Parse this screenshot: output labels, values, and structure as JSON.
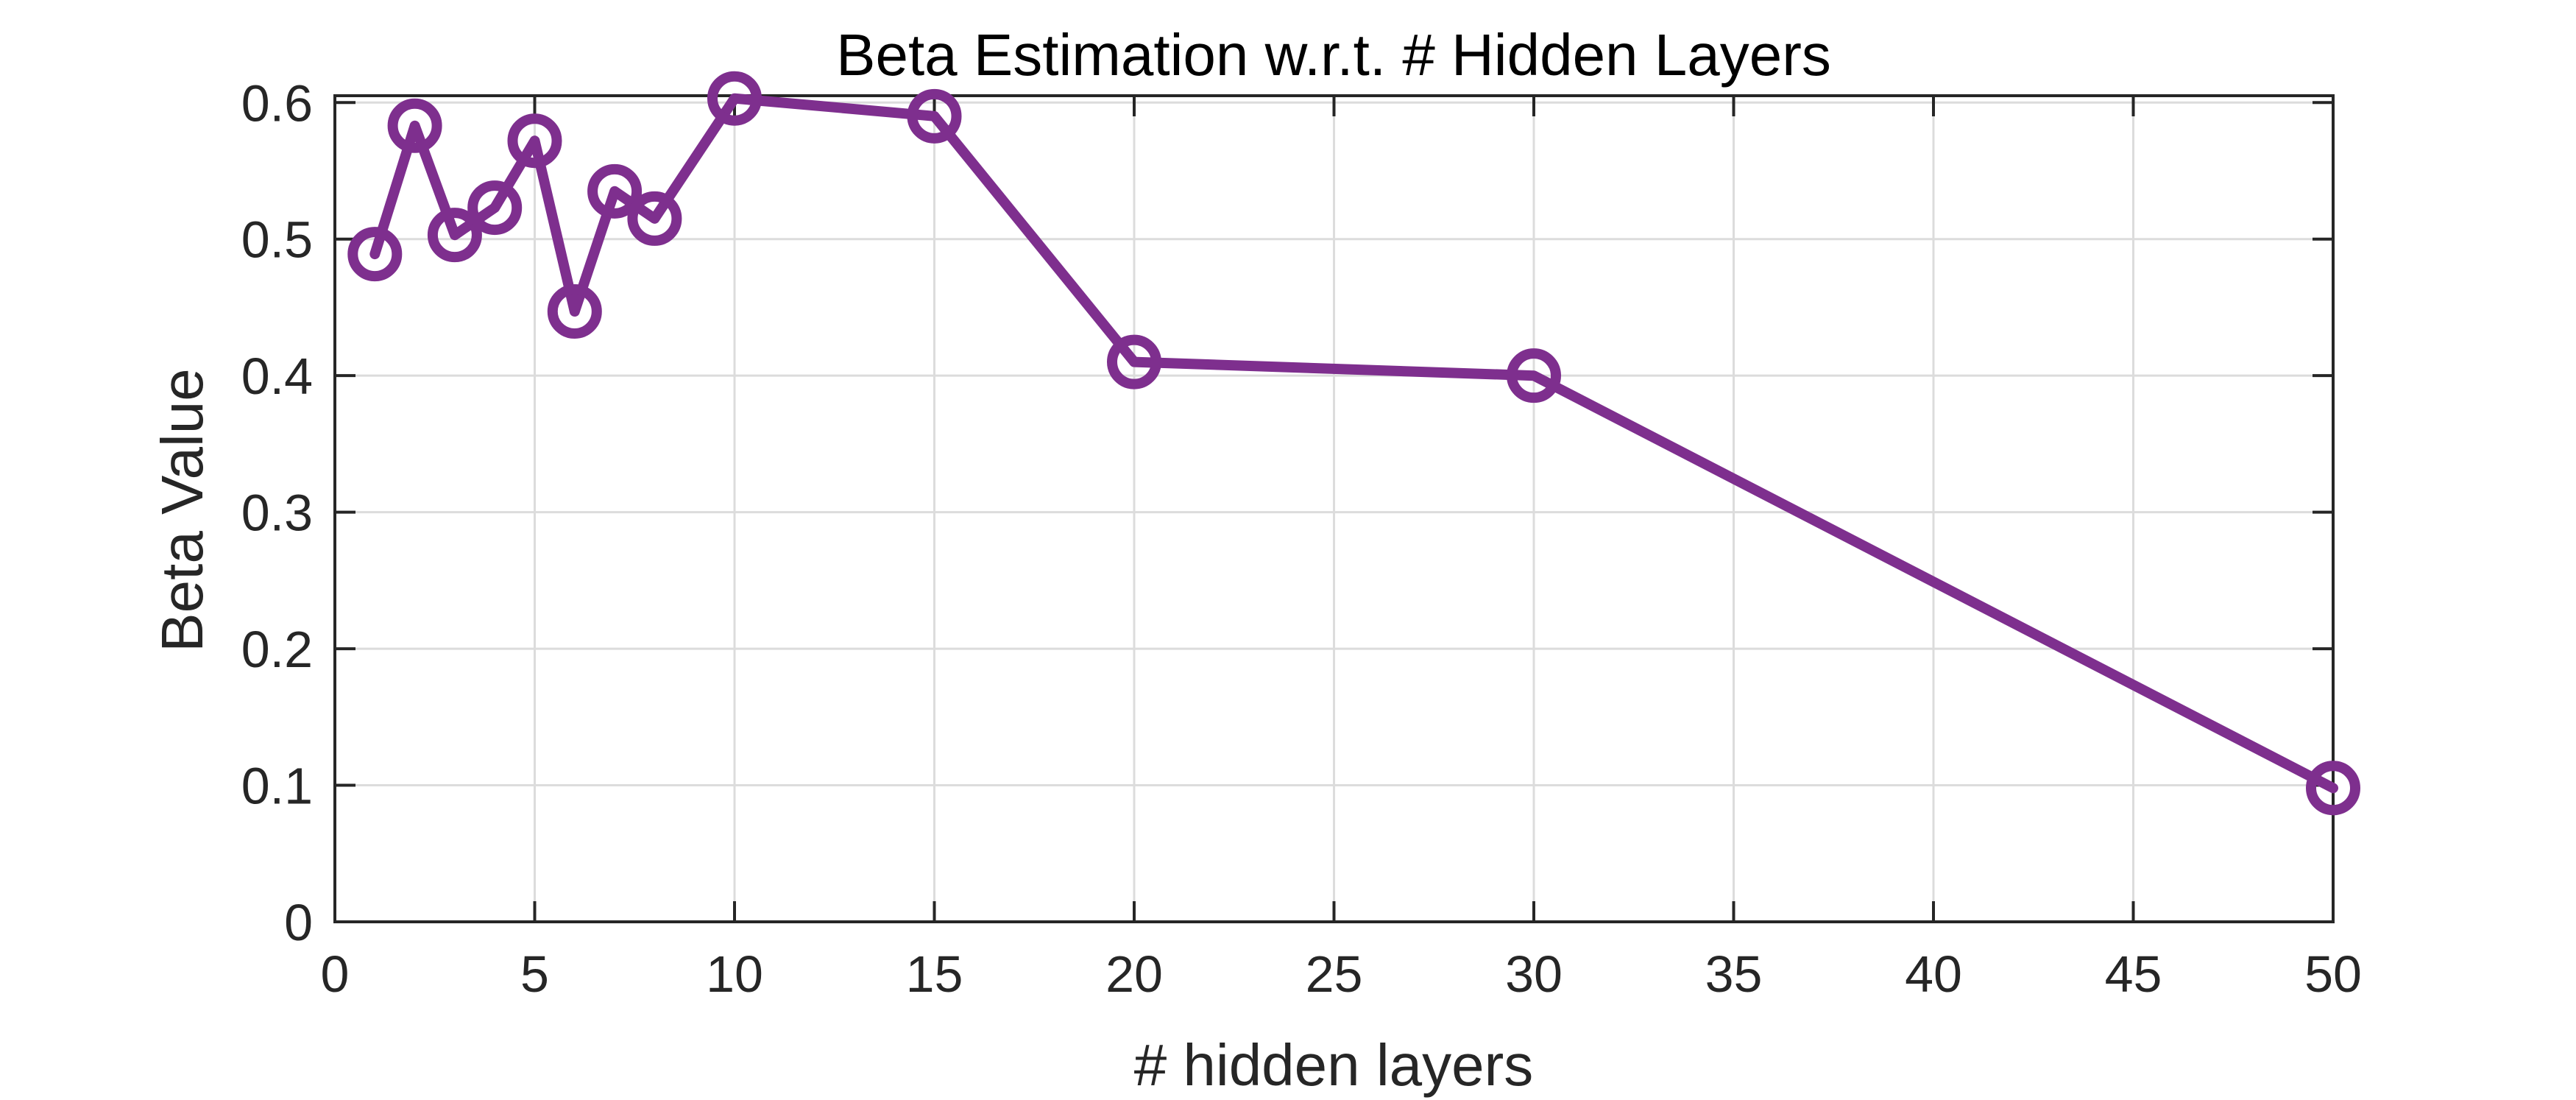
{
  "chart_data": {
    "type": "line",
    "title": "Beta Estimation w.r.t. # Hidden Layers",
    "xlabel": "# hidden layers",
    "ylabel": "Beta Value",
    "x_ticks": [
      0,
      5,
      10,
      15,
      20,
      25,
      30,
      35,
      40,
      45,
      50
    ],
    "y_ticks": [
      0,
      0.1,
      0.2,
      0.3,
      0.4,
      0.5,
      0.6
    ],
    "x_tick_labels": [
      "0",
      "5",
      "10",
      "15",
      "20",
      "25",
      "30",
      "35",
      "40",
      "45",
      "50"
    ],
    "y_tick_labels": [
      "0",
      "0.1",
      "0.2",
      "0.3",
      "0.4",
      "0.5",
      "0.6"
    ],
    "xlim": [
      0,
      50
    ],
    "ylim": [
      0,
      0.605
    ],
    "grid": true,
    "marker": "circle",
    "series": [
      {
        "x": [
          1,
          2,
          3,
          4,
          5,
          6,
          7,
          8,
          10,
          15,
          20,
          30,
          50
        ],
        "y": [
          0.489,
          0.583,
          0.503,
          0.523,
          0.572,
          0.447,
          0.535,
          0.515,
          0.603,
          0.59,
          0.41,
          0.4,
          0.098
        ],
        "color": "#7e2f8e"
      }
    ],
    "colors": {
      "axes": "#262626",
      "grid": "#dcdcdc",
      "background": "#ffffff"
    }
  }
}
